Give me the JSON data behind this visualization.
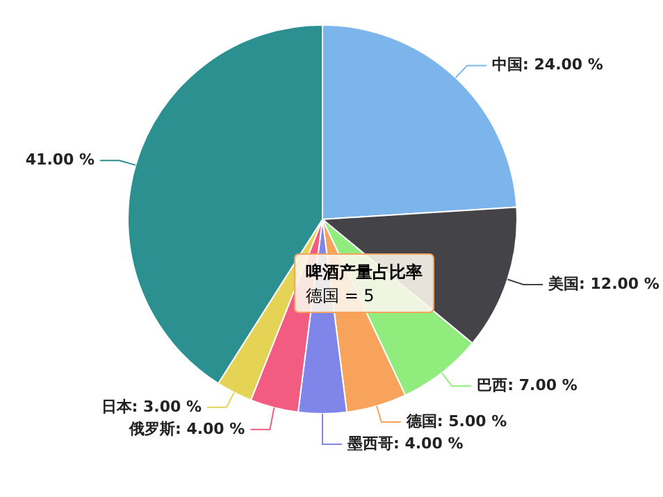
{
  "chart_data": {
    "type": "pie",
    "title": "啤酒产量占比率",
    "annotations": [
      "德国 = 5"
    ],
    "categories": [
      "中国",
      "美国",
      "巴西",
      "德国",
      "墨西哥",
      "俄罗斯",
      "日本",
      null
    ],
    "values": [
      24,
      12,
      7,
      5,
      4,
      4,
      3,
      41
    ],
    "value_labels": [
      "24.00 %",
      "12.00 %",
      "7.00 %",
      "5.00 %",
      "4.00 %",
      "4.00 %",
      "3.00 %",
      "41.00 %"
    ],
    "colors": [
      "#7cb5ec",
      "#434348",
      "#90ed7d",
      "#f7a35c",
      "#8085e9",
      "#f15c80",
      "#e4d354",
      "#2b908f"
    ]
  }
}
